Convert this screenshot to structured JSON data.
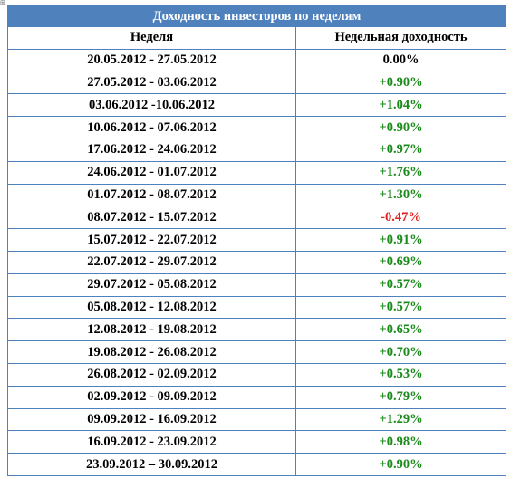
{
  "table": {
    "title": "Доходность инвесторов по неделям",
    "headers": [
      "Неделя",
      "Недельная доходность"
    ],
    "rows": [
      {
        "week": "20.05.2012 - 27.05.2012",
        "return": "0.00%",
        "sign": "zero"
      },
      {
        "week": "27.05.2012 - 03.06.2012",
        "return": "+0.90%",
        "sign": "pos"
      },
      {
        "week": "03.06.2012 -10.06.2012",
        "return": "+1.04%",
        "sign": "pos"
      },
      {
        "week": "10.06.2012 - 07.06.2012",
        "return": "+0.90%",
        "sign": "pos"
      },
      {
        "week": "17.06.2012 - 24.06.2012",
        "return": "+0.97%",
        "sign": "pos"
      },
      {
        "week": "24.06.2012 - 01.07.2012",
        "return": "+1.76%",
        "sign": "pos"
      },
      {
        "week": "01.07.2012 - 08.07.2012",
        "return": "+1.30%",
        "sign": "pos"
      },
      {
        "week": "08.07.2012 - 15.07.2012",
        "return": "-0.47%",
        "sign": "neg"
      },
      {
        "week": "15.07.2012 - 22.07.2012",
        "return": "+0.91%",
        "sign": "pos"
      },
      {
        "week": "22.07.2012 - 29.07.2012",
        "return": "+0.69%",
        "sign": "pos"
      },
      {
        "week": "29.07.2012 - 05.08.2012",
        "return": "+0.57%",
        "sign": "pos"
      },
      {
        "week": "05.08.2012 - 12.08.2012",
        "return": "+0.57%",
        "sign": "pos"
      },
      {
        "week": "12.08.2012 - 19.08.2012",
        "return": "+0.65%",
        "sign": "pos"
      },
      {
        "week": "19.08.2012 - 26.08.2012",
        "return": "+0.70%",
        "sign": "pos"
      },
      {
        "week": "26.08.2012 - 02.09.2012",
        "return": "+0.53%",
        "sign": "pos"
      },
      {
        "week": "02.09.2012 - 09.09.2012",
        "return": "+0.79%",
        "sign": "pos"
      },
      {
        "week": "09.09.2012 - 16.09.2012",
        "return": "+1.29%",
        "sign": "pos"
      },
      {
        "week": "16.09.2012 - 23.09.2012",
        "return": "+0.98%",
        "sign": "pos"
      },
      {
        "week": "23.09.2012 – 30.09.2012",
        "return": "+0.90%",
        "sign": "pos"
      }
    ]
  },
  "colors": {
    "header_bg": "#4f81bd",
    "border": "#4f81bd",
    "positive": "#1a8a1a",
    "negative": "#e31b1b"
  },
  "icons": {
    "anchor": "table-move-handle-icon"
  }
}
